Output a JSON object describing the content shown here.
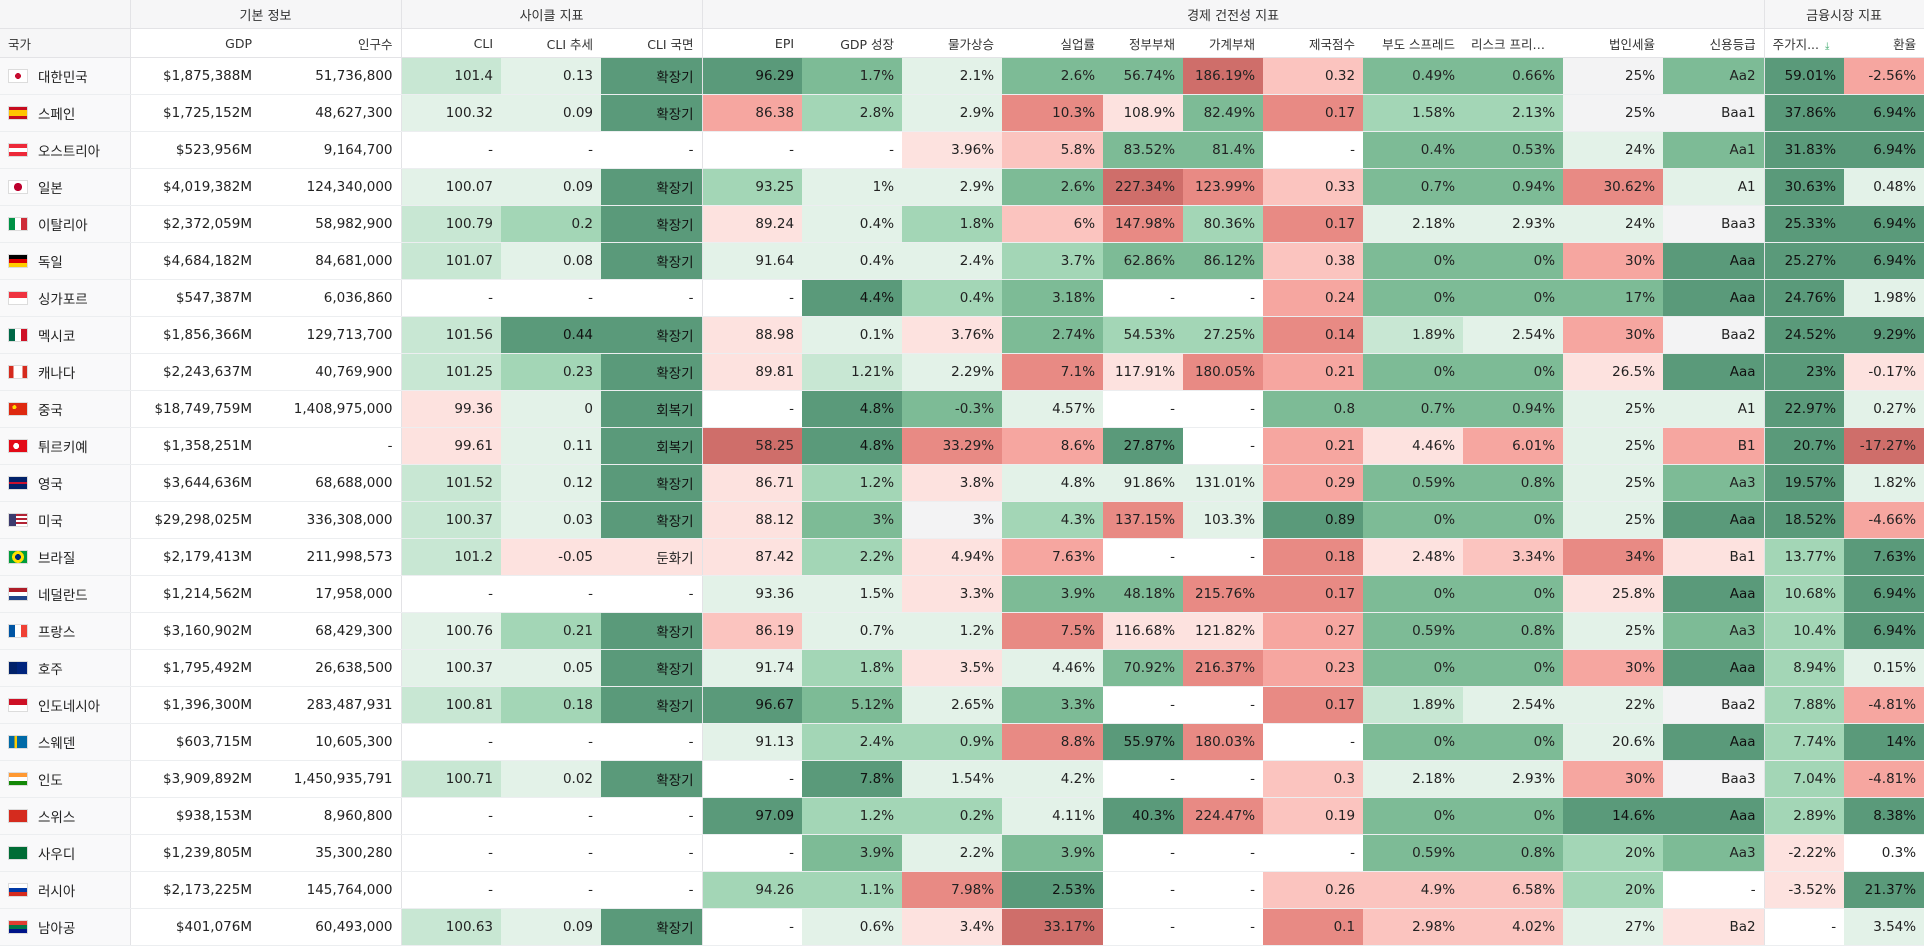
{
  "groups": {
    "basic": "기본 정보",
    "cycle": "사이클 지표",
    "health": "경제 건전성 지표",
    "market": "금융시장 지표"
  },
  "columns": {
    "country": "국가",
    "gdp": "GDP",
    "population": "인구수",
    "cli": "CLI",
    "cli_trend": "CLI 추세",
    "cli_phase": "CLI 국면",
    "epi": "EPI",
    "gdp_growth": "GDP 성장",
    "inflation": "물가상승",
    "unemployment": "실업률",
    "gov_debt": "정부부채",
    "household_debt": "가계부채",
    "misery": "제국점수",
    "cds_spread": "부도 스프레드",
    "risk_premium": "리스크 프리미엄",
    "corp_tax": "법인세율",
    "credit_rating": "신용등급",
    "stock_index": "주가지...",
    "fx": "환율"
  },
  "sort": {
    "column": "stock_index",
    "direction": "desc",
    "icon": "sort-down-icon"
  },
  "rows": [
    {
      "country": "대한민국",
      "flag": "kr",
      "gdp": "$1,875,388M",
      "population": "51,736,800",
      "cli": "101.4",
      "cli_trend": "0.13",
      "cli_phase": "확장기",
      "epi": "96.29",
      "gdp_growth": "1.7%",
      "inflation": "2.1%",
      "unemployment": "2.6%",
      "gov_debt": "56.74%",
      "household_debt": "186.19%",
      "misery": "0.32",
      "cds_spread": "0.49%",
      "risk_premium": "0.66%",
      "corp_tax": "25%",
      "credit_rating": "Aa2",
      "stock_index": "59.01%",
      "fx": "-2.56%"
    },
    {
      "country": "스페인",
      "flag": "es",
      "gdp": "$1,725,152M",
      "population": "48,627,300",
      "cli": "100.32",
      "cli_trend": "0.09",
      "cli_phase": "확장기",
      "epi": "86.38",
      "gdp_growth": "2.8%",
      "inflation": "2.9%",
      "unemployment": "10.3%",
      "gov_debt": "108.9%",
      "household_debt": "82.49%",
      "misery": "0.17",
      "cds_spread": "1.58%",
      "risk_premium": "2.13%",
      "corp_tax": "25%",
      "credit_rating": "Baa1",
      "stock_index": "37.86%",
      "fx": "6.94%"
    },
    {
      "country": "오스트리아",
      "flag": "at",
      "gdp": "$523,956M",
      "population": "9,164,700",
      "cli": "-",
      "cli_trend": "-",
      "cli_phase": "-",
      "epi": "-",
      "gdp_growth": "-",
      "inflation": "3.96%",
      "unemployment": "5.8%",
      "gov_debt": "83.52%",
      "household_debt": "81.4%",
      "misery": "-",
      "cds_spread": "0.4%",
      "risk_premium": "0.53%",
      "corp_tax": "24%",
      "credit_rating": "Aa1",
      "stock_index": "31.83%",
      "fx": "6.94%"
    },
    {
      "country": "일본",
      "flag": "jp",
      "gdp": "$4,019,382M",
      "population": "124,340,000",
      "cli": "100.07",
      "cli_trend": "0.09",
      "cli_phase": "확장기",
      "epi": "93.25",
      "gdp_growth": "1%",
      "inflation": "2.9%",
      "unemployment": "2.6%",
      "gov_debt": "227.34%",
      "household_debt": "123.99%",
      "misery": "0.33",
      "cds_spread": "0.7%",
      "risk_premium": "0.94%",
      "corp_tax": "30.62%",
      "credit_rating": "A1",
      "stock_index": "30.63%",
      "fx": "0.48%"
    },
    {
      "country": "이탈리아",
      "flag": "it",
      "gdp": "$2,372,059M",
      "population": "58,982,900",
      "cli": "100.79",
      "cli_trend": "0.2",
      "cli_phase": "확장기",
      "epi": "89.24",
      "gdp_growth": "0.4%",
      "inflation": "1.8%",
      "unemployment": "6%",
      "gov_debt": "147.98%",
      "household_debt": "80.36%",
      "misery": "0.17",
      "cds_spread": "2.18%",
      "risk_premium": "2.93%",
      "corp_tax": "24%",
      "credit_rating": "Baa3",
      "stock_index": "25.33%",
      "fx": "6.94%"
    },
    {
      "country": "독일",
      "flag": "de",
      "gdp": "$4,684,182M",
      "population": "84,681,000",
      "cli": "101.07",
      "cli_trend": "0.08",
      "cli_phase": "확장기",
      "epi": "91.64",
      "gdp_growth": "0.4%",
      "inflation": "2.4%",
      "unemployment": "3.7%",
      "gov_debt": "62.86%",
      "household_debt": "86.12%",
      "misery": "0.38",
      "cds_spread": "0%",
      "risk_premium": "0%",
      "corp_tax": "30%",
      "credit_rating": "Aaa",
      "stock_index": "25.27%",
      "fx": "6.94%"
    },
    {
      "country": "싱가포르",
      "flag": "sg",
      "gdp": "$547,387M",
      "population": "6,036,860",
      "cli": "-",
      "cli_trend": "-",
      "cli_phase": "-",
      "epi": "-",
      "gdp_growth": "4.4%",
      "inflation": "0.4%",
      "unemployment": "3.18%",
      "gov_debt": "-",
      "household_debt": "-",
      "misery": "0.24",
      "cds_spread": "0%",
      "risk_premium": "0%",
      "corp_tax": "17%",
      "credit_rating": "Aaa",
      "stock_index": "24.76%",
      "fx": "1.98%"
    },
    {
      "country": "멕시코",
      "flag": "mx",
      "gdp": "$1,856,366M",
      "population": "129,713,700",
      "cli": "101.56",
      "cli_trend": "0.44",
      "cli_phase": "확장기",
      "epi": "88.98",
      "gdp_growth": "0.1%",
      "inflation": "3.76%",
      "unemployment": "2.74%",
      "gov_debt": "54.53%",
      "household_debt": "27.25%",
      "misery": "0.14",
      "cds_spread": "1.89%",
      "risk_premium": "2.54%",
      "corp_tax": "30%",
      "credit_rating": "Baa2",
      "stock_index": "24.52%",
      "fx": "9.29%"
    },
    {
      "country": "캐나다",
      "flag": "ca",
      "gdp": "$2,243,637M",
      "population": "40,769,900",
      "cli": "101.25",
      "cli_trend": "0.23",
      "cli_phase": "확장기",
      "epi": "89.81",
      "gdp_growth": "1.21%",
      "inflation": "2.29%",
      "unemployment": "7.1%",
      "gov_debt": "117.91%",
      "household_debt": "180.05%",
      "misery": "0.21",
      "cds_spread": "0%",
      "risk_premium": "0%",
      "corp_tax": "26.5%",
      "credit_rating": "Aaa",
      "stock_index": "23%",
      "fx": "-0.17%"
    },
    {
      "country": "중국",
      "flag": "cn",
      "gdp": "$18,749,759M",
      "population": "1,408,975,000",
      "cli": "99.36",
      "cli_trend": "0",
      "cli_phase": "회복기",
      "epi": "-",
      "gdp_growth": "4.8%",
      "inflation": "-0.3%",
      "unemployment": "4.57%",
      "gov_debt": "-",
      "household_debt": "-",
      "misery": "0.8",
      "cds_spread": "0.7%",
      "risk_premium": "0.94%",
      "corp_tax": "25%",
      "credit_rating": "A1",
      "stock_index": "22.97%",
      "fx": "0.27%"
    },
    {
      "country": "튀르키예",
      "flag": "tr",
      "gdp": "$1,358,251M",
      "population": "-",
      "cli": "99.61",
      "cli_trend": "0.11",
      "cli_phase": "회복기",
      "epi": "58.25",
      "gdp_growth": "4.8%",
      "inflation": "33.29%",
      "unemployment": "8.6%",
      "gov_debt": "27.87%",
      "household_debt": "-",
      "misery": "0.21",
      "cds_spread": "4.46%",
      "risk_premium": "6.01%",
      "corp_tax": "25%",
      "credit_rating": "B1",
      "stock_index": "20.7%",
      "fx": "-17.27%"
    },
    {
      "country": "영국",
      "flag": "gb",
      "gdp": "$3,644,636M",
      "population": "68,688,000",
      "cli": "101.52",
      "cli_trend": "0.12",
      "cli_phase": "확장기",
      "epi": "86.71",
      "gdp_growth": "1.2%",
      "inflation": "3.8%",
      "unemployment": "4.8%",
      "gov_debt": "91.86%",
      "household_debt": "131.01%",
      "misery": "0.29",
      "cds_spread": "0.59%",
      "risk_premium": "0.8%",
      "corp_tax": "25%",
      "credit_rating": "Aa3",
      "stock_index": "19.57%",
      "fx": "1.82%"
    },
    {
      "country": "미국",
      "flag": "us",
      "gdp": "$29,298,025M",
      "population": "336,308,000",
      "cli": "100.37",
      "cli_trend": "0.03",
      "cli_phase": "확장기",
      "epi": "88.12",
      "gdp_growth": "3%",
      "inflation": "3%",
      "unemployment": "4.3%",
      "gov_debt": "137.15%",
      "household_debt": "103.3%",
      "misery": "0.89",
      "cds_spread": "0%",
      "risk_premium": "0%",
      "corp_tax": "25%",
      "credit_rating": "Aaa",
      "stock_index": "18.52%",
      "fx": "-4.66%"
    },
    {
      "country": "브라질",
      "flag": "br",
      "gdp": "$2,179,413M",
      "population": "211,998,573",
      "cli": "101.2",
      "cli_trend": "-0.05",
      "cli_phase": "둔화기",
      "epi": "87.42",
      "gdp_growth": "2.2%",
      "inflation": "4.94%",
      "unemployment": "7.63%",
      "gov_debt": "-",
      "household_debt": "-",
      "misery": "0.18",
      "cds_spread": "2.48%",
      "risk_premium": "3.34%",
      "corp_tax": "34%",
      "credit_rating": "Ba1",
      "stock_index": "13.77%",
      "fx": "7.63%"
    },
    {
      "country": "네덜란드",
      "flag": "nl",
      "gdp": "$1,214,562M",
      "population": "17,958,000",
      "cli": "-",
      "cli_trend": "-",
      "cli_phase": "-",
      "epi": "93.36",
      "gdp_growth": "1.5%",
      "inflation": "3.3%",
      "unemployment": "3.9%",
      "gov_debt": "48.18%",
      "household_debt": "215.76%",
      "misery": "0.17",
      "cds_spread": "0%",
      "risk_premium": "0%",
      "corp_tax": "25.8%",
      "credit_rating": "Aaa",
      "stock_index": "10.68%",
      "fx": "6.94%"
    },
    {
      "country": "프랑스",
      "flag": "fr",
      "gdp": "$3,160,902M",
      "population": "68,429,300",
      "cli": "100.76",
      "cli_trend": "0.21",
      "cli_phase": "확장기",
      "epi": "86.19",
      "gdp_growth": "0.7%",
      "inflation": "1.2%",
      "unemployment": "7.5%",
      "gov_debt": "116.68%",
      "household_debt": "121.82%",
      "misery": "0.27",
      "cds_spread": "0.59%",
      "risk_premium": "0.8%",
      "corp_tax": "25%",
      "credit_rating": "Aa3",
      "stock_index": "10.4%",
      "fx": "6.94%"
    },
    {
      "country": "호주",
      "flag": "au",
      "gdp": "$1,795,492M",
      "population": "26,638,500",
      "cli": "100.37",
      "cli_trend": "0.05",
      "cli_phase": "확장기",
      "epi": "91.74",
      "gdp_growth": "1.8%",
      "inflation": "3.5%",
      "unemployment": "4.46%",
      "gov_debt": "70.92%",
      "household_debt": "216.37%",
      "misery": "0.23",
      "cds_spread": "0%",
      "risk_premium": "0%",
      "corp_tax": "30%",
      "credit_rating": "Aaa",
      "stock_index": "8.94%",
      "fx": "0.15%"
    },
    {
      "country": "인도네시아",
      "flag": "id",
      "gdp": "$1,396,300M",
      "population": "283,487,931",
      "cli": "100.81",
      "cli_trend": "0.18",
      "cli_phase": "확장기",
      "epi": "96.67",
      "gdp_growth": "5.12%",
      "inflation": "2.65%",
      "unemployment": "3.3%",
      "gov_debt": "-",
      "household_debt": "-",
      "misery": "0.17",
      "cds_spread": "1.89%",
      "risk_premium": "2.54%",
      "corp_tax": "22%",
      "credit_rating": "Baa2",
      "stock_index": "7.88%",
      "fx": "-4.81%"
    },
    {
      "country": "스웨덴",
      "flag": "se",
      "gdp": "$603,715M",
      "population": "10,605,300",
      "cli": "-",
      "cli_trend": "-",
      "cli_phase": "-",
      "epi": "91.13",
      "gdp_growth": "2.4%",
      "inflation": "0.9%",
      "unemployment": "8.8%",
      "gov_debt": "55.97%",
      "household_debt": "180.03%",
      "misery": "-",
      "cds_spread": "0%",
      "risk_premium": "0%",
      "corp_tax": "20.6%",
      "credit_rating": "Aaa",
      "stock_index": "7.74%",
      "fx": "14%"
    },
    {
      "country": "인도",
      "flag": "in",
      "gdp": "$3,909,892M",
      "population": "1,450,935,791",
      "cli": "100.71",
      "cli_trend": "0.02",
      "cli_phase": "확장기",
      "epi": "-",
      "gdp_growth": "7.8%",
      "inflation": "1.54%",
      "unemployment": "4.2%",
      "gov_debt": "-",
      "household_debt": "-",
      "misery": "0.3",
      "cds_spread": "2.18%",
      "risk_premium": "2.93%",
      "corp_tax": "30%",
      "credit_rating": "Baa3",
      "stock_index": "7.04%",
      "fx": "-4.81%"
    },
    {
      "country": "스위스",
      "flag": "ch",
      "gdp": "$938,153M",
      "population": "8,960,800",
      "cli": "-",
      "cli_trend": "-",
      "cli_phase": "-",
      "epi": "97.09",
      "gdp_growth": "1.2%",
      "inflation": "0.2%",
      "unemployment": "4.11%",
      "gov_debt": "40.3%",
      "household_debt": "224.47%",
      "misery": "0.19",
      "cds_spread": "0%",
      "risk_premium": "0%",
      "corp_tax": "14.6%",
      "credit_rating": "Aaa",
      "stock_index": "2.89%",
      "fx": "8.38%"
    },
    {
      "country": "사우디",
      "flag": "sa",
      "gdp": "$1,239,805M",
      "population": "35,300,280",
      "cli": "-",
      "cli_trend": "-",
      "cli_phase": "-",
      "epi": "-",
      "gdp_growth": "3.9%",
      "inflation": "2.2%",
      "unemployment": "3.9%",
      "gov_debt": "-",
      "household_debt": "-",
      "misery": "-",
      "cds_spread": "0.59%",
      "risk_premium": "0.8%",
      "corp_tax": "20%",
      "credit_rating": "Aa3",
      "stock_index": "-2.22%",
      "fx": "0.3%"
    },
    {
      "country": "러시아",
      "flag": "ru",
      "gdp": "$2,173,225M",
      "population": "145,764,000",
      "cli": "-",
      "cli_trend": "-",
      "cli_phase": "-",
      "epi": "94.26",
      "gdp_growth": "1.1%",
      "inflation": "7.98%",
      "unemployment": "2.53%",
      "gov_debt": "-",
      "household_debt": "-",
      "misery": "0.26",
      "cds_spread": "4.9%",
      "risk_premium": "6.58%",
      "corp_tax": "20%",
      "credit_rating": "-",
      "stock_index": "-3.52%",
      "fx": "21.37%"
    },
    {
      "country": "남아공",
      "flag": "za",
      "gdp": "$401,076M",
      "population": "60,493,000",
      "cli": "100.63",
      "cli_trend": "0.09",
      "cli_phase": "확장기",
      "epi": "-",
      "gdp_growth": "0.6%",
      "inflation": "3.4%",
      "unemployment": "33.17%",
      "gov_debt": "-",
      "household_debt": "-",
      "misery": "0.1",
      "cds_spread": "2.98%",
      "risk_premium": "4.02%",
      "corp_tax": "27%",
      "credit_rating": "Ba2",
      "stock_index": "-",
      "fx": "3.54%"
    }
  ]
}
